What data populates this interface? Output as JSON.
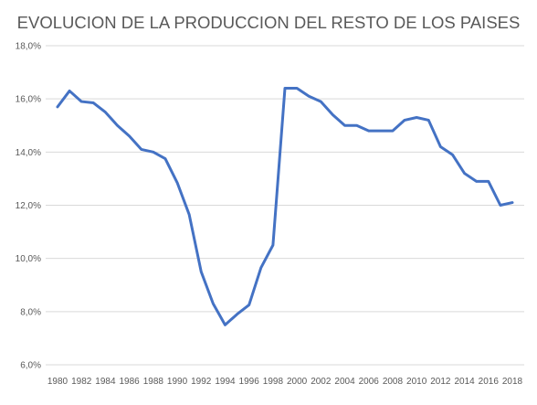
{
  "chart_data": {
    "type": "line",
    "title": "EVOLUCION DE LA PRODUCCION DEL RESTO DE LOS PAISES",
    "xlabel": "",
    "ylabel": "",
    "x": [
      1980,
      1981,
      1982,
      1983,
      1984,
      1985,
      1986,
      1987,
      1988,
      1989,
      1990,
      1991,
      1992,
      1993,
      1994,
      1995,
      1996,
      1997,
      1998,
      1999,
      2000,
      2001,
      2002,
      2003,
      2004,
      2005,
      2006,
      2007,
      2008,
      2009,
      2010,
      2011,
      2012,
      2013,
      2014,
      2015,
      2016,
      2017,
      2018
    ],
    "x_tick_labels": [
      "1980",
      "1982",
      "1984",
      "1986",
      "1988",
      "1990",
      "1992",
      "1994",
      "1996",
      "1998",
      "2000",
      "2002",
      "2004",
      "2006",
      "2008",
      "2010",
      "2012",
      "2014",
      "2016",
      "2018"
    ],
    "y_tick_labels": [
      "6,0%",
      "8,0%",
      "10,0%",
      "12,0%",
      "14,0%",
      "16,0%",
      "18,0%"
    ],
    "y_ticks": [
      6,
      8,
      10,
      12,
      14,
      16,
      18
    ],
    "ylim": [
      6,
      18
    ],
    "grid": true,
    "series": [
      {
        "color": "#4472c4",
        "values": [
          15.7,
          16.3,
          15.9,
          15.85,
          15.5,
          15.0,
          14.6,
          14.1,
          14.0,
          13.75,
          12.85,
          11.65,
          9.5,
          8.3,
          7.5,
          7.9,
          8.25,
          9.65,
          10.5,
          16.4,
          16.4,
          16.1,
          15.9,
          15.4,
          15.0,
          15.0,
          14.8,
          14.8,
          14.8,
          15.2,
          15.3,
          15.2,
          14.2,
          13.9,
          13.2,
          12.9,
          12.9,
          12.0,
          12.1
        ]
      }
    ]
  }
}
